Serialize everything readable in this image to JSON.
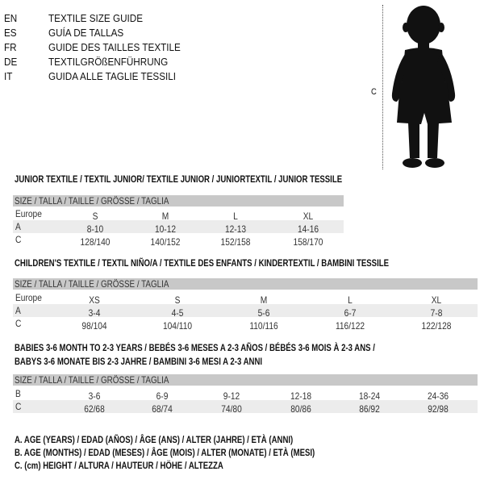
{
  "languages": [
    {
      "code": "EN",
      "name": "TEXTILE SIZE GUIDE"
    },
    {
      "code": "ES",
      "name": "GUÍA DE TALLAS"
    },
    {
      "code": "FR",
      "name": "GUIDE DES TAILLES TEXTILE"
    },
    {
      "code": "DE",
      "name": "TEXTILGRÖßENFÜHRUNG"
    },
    {
      "code": "IT",
      "name": "GUIDA ALLE TAGLIE TESSILI"
    }
  ],
  "figure": {
    "measure_label": "C",
    "icon": "child-silhouette-icon"
  },
  "colors": {
    "header_band": "#c8c8c8",
    "row_shade": "#ececec"
  },
  "tables": [
    {
      "title": "JUNIOR TEXTILE / TEXTIL JUNIOR/ TEXTILE JUNIOR / JUNIORTEXTIL / JUNIOR TESSILE",
      "header": "SIZE / TALLA / TAILLE / GRÖSSE / TAGLIA",
      "rows": [
        {
          "label": "Europe",
          "values": [
            "S",
            "M",
            "L",
            "XL"
          ]
        },
        {
          "label": "A",
          "values": [
            "8-10",
            "10-12",
            "12-13",
            "14-16"
          ]
        },
        {
          "label": "C",
          "values": [
            "128/140",
            "140/152",
            "152/158",
            "158/170"
          ]
        }
      ]
    },
    {
      "title": "CHILDREN'S TEXTILE / TEXTIL NIÑO/A / TEXTILE DES ENFANTS / KINDERTEXTIL / BAMBINI TESSILE",
      "header": "SIZE / TALLA / TAILLE / GRÖSSE / TAGLIA",
      "rows": [
        {
          "label": "Europe",
          "values": [
            "XS",
            "S",
            "M",
            "L",
            "XL"
          ]
        },
        {
          "label": "A",
          "values": [
            "3-4",
            "4-5",
            "5-6",
            "6-7",
            "7-8"
          ]
        },
        {
          "label": "C",
          "values": [
            "98/104",
            "104/110",
            "110/116",
            "116/122",
            "122/128"
          ]
        }
      ]
    },
    {
      "title": "BABIES 3-6 MONTH TO 2-3 YEARS / BEBÉS 3-6 MESES A 2-3 AÑOS / BÉBÉS 3-6 MOIS À 2-3 ANS /",
      "title2": "BABYS 3-6 MONATE BIS 2-3 JAHRE / BAMBINI 3-6 MESI A 2-3 ANNI",
      "header": "SIZE / TALLA / TAILLE / GRÖSSE / TAGLIA",
      "rows": [
        {
          "label": "B",
          "values": [
            "3-6",
            "6-9",
            "9-12",
            "12-18",
            "18-24",
            "24-36"
          ]
        },
        {
          "label": "C",
          "values": [
            "62/68",
            "68/74",
            "74/80",
            "80/86",
            "86/92",
            "92/98"
          ]
        }
      ]
    }
  ],
  "legend": [
    "A. AGE (YEARS) / EDAD (AÑOS) / ÂGE (ANS) / ALTER (JAHRE) / ETÀ (ANNI)",
    "B. AGE (MONTHS) / EDAD (MESES) / ÂGE (MOIS) / ALTER (MONATE) / ETÀ (MESI)",
    "C. (cm) HEIGHT / ALTURA / HAUTEUR / HÖHE / ALTEZZA"
  ]
}
